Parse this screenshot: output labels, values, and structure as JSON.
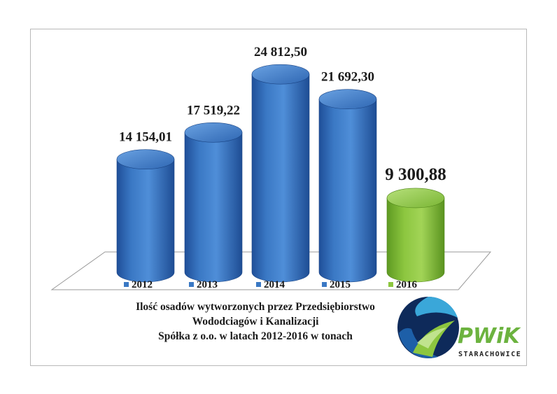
{
  "chart_data": {
    "type": "bar",
    "categories": [
      "2012",
      "2013",
      "2014",
      "2015",
      "2016"
    ],
    "values": [
      14154.01,
      17519.22,
      24812.5,
      21692.3,
      9300.88
    ],
    "value_labels": [
      "14 154,01",
      "17 519,22",
      "24 812,50",
      "21 692,30",
      "9 300,88"
    ],
    "legend": [
      "2012",
      "2013",
      "2014",
      "2015",
      "2016"
    ],
    "colors": [
      "#3a78c4",
      "#3a78c4",
      "#3a78c4",
      "#3a78c4",
      "#8cc63f"
    ],
    "legend_placement": "bottom",
    "grid": false,
    "style": "3d-cylinder"
  },
  "caption": {
    "line1": "Ilość osadów wytworzonych przez Przedsiębiorstwo",
    "line2": "Wododciagów i Kanalizacji",
    "line3": "Spółka z o.o. w latach 2012-2016 w tonach"
  },
  "logo": {
    "name": "PWiK",
    "subtitle": "STARACHOWICE",
    "icon": "pwik-logo-icon"
  }
}
